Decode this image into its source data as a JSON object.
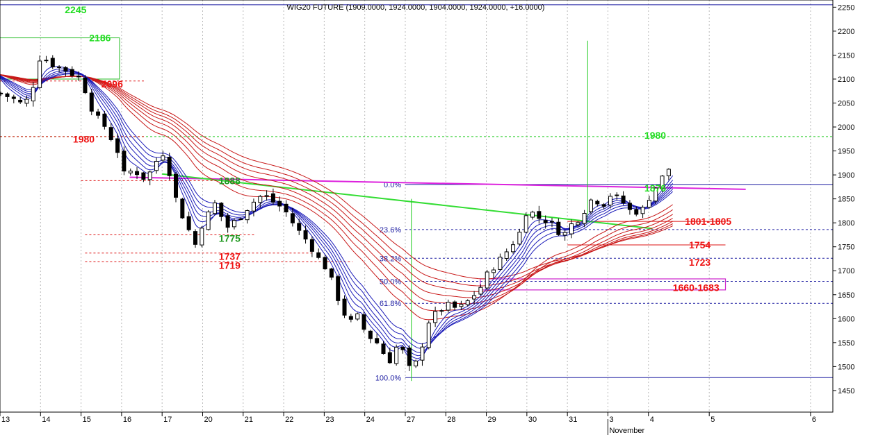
{
  "chart_data": {
    "type": "candlestick",
    "title": "WIG20 FUTURE (1909.0000, 1924.0000, 1904.0000, 1924.0000, +16.0000)",
    "ylim": [
      1405,
      2265
    ],
    "y_ticks": [
      1450,
      1500,
      1550,
      1600,
      1650,
      1700,
      1750,
      1800,
      1850,
      1900,
      1950,
      2000,
      2050,
      2100,
      2150,
      2200,
      2250
    ],
    "x_ticks": [
      {
        "label": "13",
        "x": 0
      },
      {
        "label": "14",
        "x": 1
      },
      {
        "label": "15",
        "x": 2
      },
      {
        "label": "16",
        "x": 3
      },
      {
        "label": "17",
        "x": 4
      },
      {
        "label": "20",
        "x": 5
      },
      {
        "label": "21",
        "x": 6
      },
      {
        "label": "22",
        "x": 7
      },
      {
        "label": "23",
        "x": 8
      },
      {
        "label": "24",
        "x": 9
      },
      {
        "label": "27",
        "x": 10
      },
      {
        "label": "28",
        "x": 11
      },
      {
        "label": "29",
        "x": 12
      },
      {
        "label": "30",
        "x": 13
      },
      {
        "label": "31",
        "x": 14
      },
      {
        "label": "3",
        "x": 15
      },
      {
        "label": "4",
        "x": 16
      },
      {
        "label": "5",
        "x": 17.5
      },
      {
        "label": "6",
        "x": 20
      }
    ],
    "x_month_label": "November",
    "x_month_at": 15,
    "xlim": [
      0,
      20.55
    ],
    "close_path": [
      [
        0.0,
        2070
      ],
      [
        0.3,
        2060
      ],
      [
        0.6,
        2045
      ],
      [
        0.8,
        2080
      ],
      [
        1.0,
        2150
      ],
      [
        1.3,
        2130
      ],
      [
        1.6,
        2120
      ],
      [
        2.0,
        2100
      ],
      [
        2.3,
        2030
      ],
      [
        2.6,
        2000
      ],
      [
        2.9,
        1950
      ],
      [
        3.0,
        1900
      ],
      [
        3.3,
        1910
      ],
      [
        3.6,
        1890
      ],
      [
        4.0,
        1950
      ],
      [
        4.2,
        1900
      ],
      [
        4.4,
        1830
      ],
      [
        4.6,
        1800
      ],
      [
        4.8,
        1750
      ],
      [
        5.0,
        1800
      ],
      [
        5.3,
        1840
      ],
      [
        5.6,
        1790
      ],
      [
        5.9,
        1810
      ],
      [
        6.2,
        1840
      ],
      [
        6.5,
        1860
      ],
      [
        6.8,
        1840
      ],
      [
        7.0,
        1830
      ],
      [
        7.3,
        1790
      ],
      [
        7.6,
        1760
      ],
      [
        7.9,
        1720
      ],
      [
        8.1,
        1700
      ],
      [
        8.3,
        1650
      ],
      [
        8.6,
        1590
      ],
      [
        8.9,
        1610
      ],
      [
        9.0,
        1570
      ],
      [
        9.3,
        1550
      ],
      [
        9.6,
        1510
      ],
      [
        9.9,
        1560
      ],
      [
        10.0,
        1490
      ],
      [
        10.3,
        1510
      ],
      [
        10.6,
        1600
      ],
      [
        10.9,
        1620
      ],
      [
        11.0,
        1630
      ],
      [
        11.3,
        1620
      ],
      [
        11.6,
        1640
      ],
      [
        11.9,
        1670
      ],
      [
        12.0,
        1690
      ],
      [
        12.3,
        1720
      ],
      [
        12.6,
        1750
      ],
      [
        12.9,
        1790
      ],
      [
        13.0,
        1830
      ],
      [
        13.3,
        1810
      ],
      [
        13.6,
        1800
      ],
      [
        13.9,
        1770
      ],
      [
        14.0,
        1790
      ],
      [
        14.3,
        1810
      ],
      [
        14.6,
        1850
      ],
      [
        14.9,
        1840
      ],
      [
        15.0,
        1860
      ],
      [
        15.3,
        1850
      ],
      [
        15.6,
        1820
      ],
      [
        15.9,
        1830
      ],
      [
        16.0,
        1850
      ],
      [
        16.3,
        1890
      ],
      [
        16.6,
        1924
      ]
    ],
    "fib_labels": [
      {
        "label": "0.0%",
        "y": 1880
      },
      {
        "label": "23.6%",
        "y": 1786
      },
      {
        "label": "38.2%",
        "y": 1726
      },
      {
        "label": "50.0%",
        "y": 1678
      },
      {
        "label": "61.8%",
        "y": 1632
      },
      {
        "label": "100.0%",
        "y": 1477
      }
    ],
    "annotations": [
      {
        "text": "2245",
        "color": "green",
        "x": 1.6,
        "y": 2245
      },
      {
        "text": "2186",
        "color": "green",
        "x": 2.2,
        "y": 2186
      },
      {
        "text": "2096",
        "color": "red",
        "x": 2.5,
        "y": 2090
      },
      {
        "text": "1980",
        "color": "red",
        "x": 1.8,
        "y": 1975
      },
      {
        "text": "1888",
        "color": "darkgreen",
        "x": 5.4,
        "y": 1888
      },
      {
        "text": "1775",
        "color": "darkgreen",
        "x": 5.4,
        "y": 1768
      },
      {
        "text": "1737",
        "color": "red",
        "x": 5.4,
        "y": 1730
      },
      {
        "text": "1719",
        "color": "red",
        "x": 5.4,
        "y": 1711
      },
      {
        "text": "1980",
        "color": "green",
        "x": 15.9,
        "y": 1983
      },
      {
        "text": "1876",
        "color": "green",
        "x": 15.9,
        "y": 1873
      },
      {
        "text": "1801-1805",
        "color": "red",
        "x": 16.9,
        "y": 1803
      },
      {
        "text": "1754",
        "color": "red",
        "x": 17.0,
        "y": 1754
      },
      {
        "text": "1723",
        "color": "red",
        "x": 17.0,
        "y": 1718
      },
      {
        "text": "1660-1683",
        "color": "red",
        "x": 16.6,
        "y": 1665
      }
    ]
  }
}
